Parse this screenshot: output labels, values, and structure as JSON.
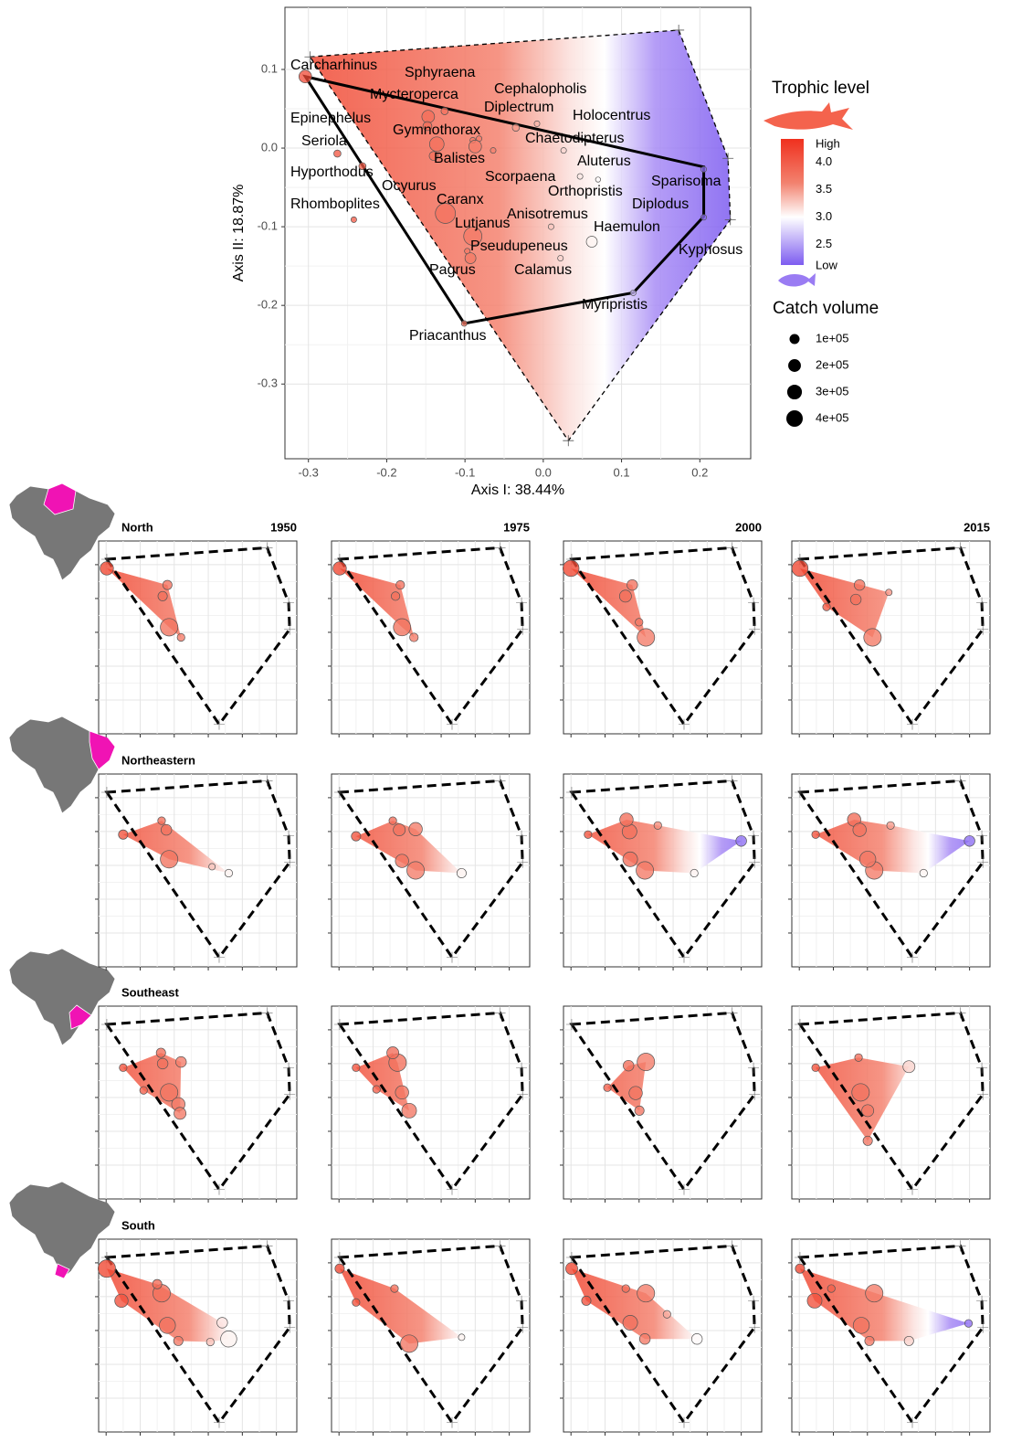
{
  "chart_data": [
    {
      "type": "scatter",
      "x_label": "Axis I: 38.44%",
      "y_label": "Axis II: 18.87%",
      "labels": [
        "Carcharhinus",
        "Sphyraena",
        "Mycteroperca",
        "Cephalopholis",
        "Diplectrum",
        "Holocentrus",
        "Epinephelus",
        "Gymnothorax",
        "Chaetodipterus",
        "Seriola",
        "Balistes",
        "Aluterus",
        "Scorpaena",
        "Hyporthodus",
        "Ocyurus",
        "Sparisoma",
        "Orthopristis",
        "Diplodus",
        "Caranx",
        "Rhomboplites",
        "Anisotremus",
        "Lutjanus",
        "Haemulon",
        "Kyphosus",
        "Pseudupeneus",
        "Pagrus",
        "Calamus",
        "Myripristis",
        "Priacanthus"
      ],
      "x": [
        -0.304,
        -0.126,
        -0.147,
        -0.09,
        -0.082,
        -0.008,
        -0.148,
        -0.136,
        -0.035,
        -0.263,
        -0.087,
        0.026,
        -0.064,
        -0.231,
        -0.14,
        0.205,
        0.047,
        0.07,
        -0.125,
        -0.242,
        0.01,
        -0.09,
        0.062,
        0.205,
        -0.097,
        -0.093,
        0.022,
        0.115,
        -0.101
      ],
      "y": [
        0.091,
        0.047,
        0.04,
        0.01,
        0.012,
        0.031,
        0.028,
        0.005,
        0.026,
        -0.007,
        0.002,
        -0.003,
        -0.003,
        -0.023,
        -0.01,
        -0.027,
        -0.036,
        -0.04,
        -0.083,
        -0.091,
        -0.1,
        -0.112,
        -0.119,
        -0.088,
        -0.131,
        -0.14,
        -0.14,
        -0.184,
        -0.223
      ],
      "sizes": [
        200000,
        30000,
        200000,
        10000,
        10000,
        10000,
        70000,
        290000,
        30000,
        30000,
        200000,
        10000,
        10000,
        30000,
        70000,
        10000,
        10000,
        5000,
        660000,
        10000,
        10000,
        520000,
        130000,
        10000,
        10000,
        130000,
        10000,
        10000,
        10000
      ],
      "xlim": [
        -0.33,
        0.265
      ],
      "ylim": [
        -0.395,
        0.179
      ],
      "xticks": [
        -0.3,
        -0.2,
        -0.1,
        {
          "value": 0,
          "label": "0.0"
        },
        0.1,
        0.2
      ],
      "yticks": [
        0.1,
        {
          "value": 0,
          "label": "0.0"
        },
        -0.1,
        -0.2,
        -0.3
      ],
      "grid": true,
      "hull_x": [
        -0.298,
        0.173,
        0.236,
        0.239,
        0.032
      ],
      "hull_y": [
        0.116,
        0.15,
        -0.013,
        -0.091,
        -0.372
      ],
      "path_x": [
        -0.304,
        0.205,
        0.205,
        0.115,
        -0.101
      ],
      "path_y": [
        0.091,
        -0.024,
        -0.087,
        -0.184,
        -0.223
      ],
      "colorbar": {
        "title": "Trophic level",
        "high": "High",
        "low": "Low",
        "lim": [
          2.13,
          4.43
        ],
        "ticks": [
          {
            "value": 4,
            "label": "4.0"
          },
          3.5,
          {
            "value": 3,
            "label": "3.0"
          },
          2.5
        ]
      },
      "size_legend": {
        "title": "Catch volume",
        "ticks": [
          {
            "value": 100000,
            "label": "1e+05"
          },
          {
            "value": 200000,
            "label": "2e+05"
          },
          {
            "value": 300000,
            "label": "3e+05"
          },
          {
            "value": 400000,
            "label": "4e+05"
          }
        ]
      }
    },
    {
      "type": "panels",
      "regions": [
        "North",
        "Northeastern",
        "Southeast",
        "South"
      ],
      "years": [
        "1950",
        "1975",
        "2000",
        "2015"
      ],
      "xlim": [
        -0.322,
        0.26
      ],
      "ylim": [
        -0.4,
        0.17
      ],
      "xticks": [
        -0.3,
        -0.2,
        -0.1,
        0,
        0.1,
        0.2
      ],
      "yticks": [
        0.1,
        0,
        -0.1,
        -0.2,
        -0.3
      ],
      "panels": [
        {
          "x": [
            -0.298,
            -0.12,
            -0.134,
            -0.115,
            -0.08
          ],
          "y": [
            0.089,
            0.04,
            0.007,
            -0.085,
            -0.115
          ],
          "sizes": [
            230000,
            80000,
            80000,
            470000,
            40000
          ]
        },
        {
          "x": [
            -0.298,
            -0.12,
            -0.134,
            -0.115,
            -0.08
          ],
          "y": [
            0.089,
            0.04,
            0.007,
            -0.085,
            -0.115
          ],
          "sizes": [
            230000,
            60000,
            60000,
            450000,
            60000
          ]
        },
        {
          "x": [
            -0.3,
            -0.12,
            -0.14,
            -0.08,
            -0.1
          ],
          "y": [
            0.089,
            0.04,
            0.007,
            -0.115,
            -0.07
          ],
          "sizes": [
            380000,
            120000,
            170000,
            470000,
            40000
          ]
        },
        {
          "x": [
            -0.298,
            -0.123,
            -0.134,
            -0.085,
            -0.037,
            -0.22
          ],
          "y": [
            0.089,
            0.04,
            -0.003,
            -0.115,
            0.018,
            -0.025
          ],
          "sizes": [
            380000,
            120000,
            120000,
            470000,
            20000,
            40000
          ]
        },
        {
          "x": [
            -0.25,
            -0.137,
            -0.123,
            -0.115,
            0.011,
            0.06
          ],
          "y": [
            -0.009,
            0.032,
            0.005,
            -0.082,
            -0.104,
            -0.123
          ],
          "sizes": [
            80000,
            40000,
            120000,
            470000,
            20000,
            40000
          ]
        },
        {
          "x": [
            -0.25,
            -0.142,
            -0.123,
            -0.075,
            -0.115,
            -0.075,
            0.06
          ],
          "y": [
            -0.014,
            0.032,
            0.005,
            0.007,
            -0.087,
            -0.115,
            -0.123
          ],
          "sizes": [
            80000,
            40000,
            170000,
            230000,
            230000,
            470000,
            80000
          ]
        },
        {
          "x": [
            -0.25,
            -0.137,
            -0.128,
            -0.045,
            -0.126,
            -0.083,
            0.062,
            0.2
          ],
          "y": [
            -0.009,
            0.035,
            0,
            0.018,
            -0.082,
            -0.115,
            -0.123,
            -0.028
          ],
          "sizes": [
            40000,
            230000,
            300000,
            40000,
            300000,
            470000,
            40000,
            120000
          ]
        },
        {
          "x": [
            -0.252,
            -0.139,
            -0.123,
            -0.099,
            -0.08,
            0.065,
            0.2,
            -0.032
          ],
          "y": [
            -0.009,
            0.035,
            0.005,
            -0.082,
            -0.115,
            -0.123,
            -0.028,
            0.018
          ],
          "sizes": [
            40000,
            230000,
            230000,
            380000,
            470000,
            40000,
            120000,
            40000
          ]
        },
        {
          "x": [
            -0.139,
            -0.134,
            -0.08,
            -0.25,
            -0.19,
            -0.115,
            -0.088,
            -0.083
          ],
          "y": [
            0.032,
            0,
            0.005,
            -0.012,
            -0.079,
            -0.085,
            -0.12,
            -0.147
          ],
          "sizes": [
            80000,
            120000,
            120000,
            40000,
            40000,
            470000,
            230000,
            170000
          ]
        },
        {
          "x": [
            -0.142,
            -0.128,
            -0.25,
            -0.19,
            -0.115,
            -0.094
          ],
          "y": [
            0.032,
            0.003,
            -0.012,
            -0.076,
            -0.085,
            -0.139
          ],
          "sizes": [
            170000,
            470000,
            40000,
            40000,
            230000,
            300000
          ]
        },
        {
          "x": [
            -0.08,
            -0.131,
            -0.193,
            -0.11,
            -0.099
          ],
          "y": [
            0.005,
            -0.006,
            -0.071,
            -0.087,
            -0.139
          ],
          "sizes": [
            470000,
            120000,
            40000,
            230000,
            80000
          ]
        },
        {
          "x": [
            -0.252,
            -0.126,
            0.022,
            -0.12,
            -0.099,
            -0.099
          ],
          "y": [
            -0.012,
            0.018,
            -0.009,
            -0.085,
            -0.139,
            -0.228
          ],
          "sizes": [
            40000,
            40000,
            170000,
            470000,
            170000,
            80000
          ]
        },
        {
          "x": [
            -0.298,
            -0.255,
            -0.137,
            -0.15,
            -0.12,
            -0.088,
            0.041,
            0.06,
            0.006
          ],
          "y": [
            0.083,
            -0.012,
            0.01,
            0.037,
            -0.085,
            -0.131,
            -0.077,
            -0.125,
            -0.134
          ],
          "sizes": [
            470000,
            230000,
            470000,
            80000,
            380000,
            80000,
            120000,
            380000,
            40000
          ]
        },
        {
          "x": [
            -0.298,
            -0.25,
            -0.137,
            -0.094,
            0.06
          ],
          "y": [
            0.083,
            -0.017,
            0.024,
            -0.139,
            -0.12
          ],
          "sizes": [
            80000,
            40000,
            40000,
            470000,
            20000
          ]
        },
        {
          "x": [
            -0.298,
            -0.255,
            -0.139,
            -0.08,
            -0.126,
            -0.083,
            0.07,
            -0.018
          ],
          "y": [
            0.083,
            -0.012,
            0.024,
            0.01,
            -0.077,
            -0.125,
            -0.125,
            -0.052
          ],
          "sizes": [
            170000,
            80000,
            40000,
            470000,
            300000,
            120000,
            120000,
            40000
          ]
        },
        {
          "x": [
            -0.298,
            -0.255,
            -0.08,
            -0.118,
            -0.094,
            0.022,
            0.197,
            -0.206
          ],
          "y": [
            0.083,
            -0.012,
            0.01,
            -0.085,
            -0.131,
            -0.131,
            -0.079,
            0.024
          ],
          "sizes": [
            80000,
            300000,
            470000,
            380000,
            80000,
            80000,
            40000,
            40000
          ]
        }
      ]
    }
  ]
}
